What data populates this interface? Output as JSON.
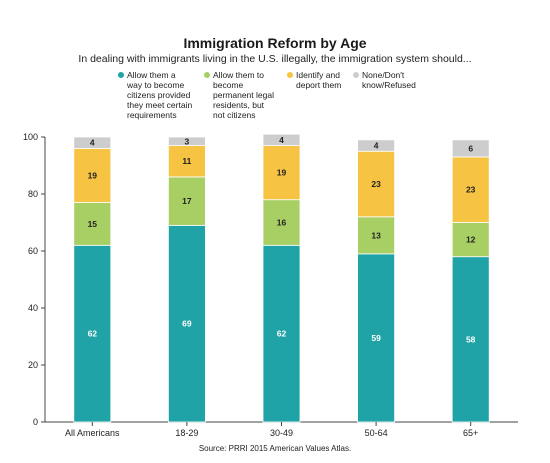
{
  "chart_data": {
    "type": "bar",
    "stacked": true,
    "title": "Immigration Reform by Age",
    "subtitle": "In dealing with immigrants living in the U.S. illegally, the immigration system should...",
    "categories": [
      "All Americans",
      "18-29",
      "30-49",
      "50-64",
      "65+"
    ],
    "series": [
      {
        "name": "Allow them a way to become citizens provided they meet certain requirements",
        "color": "#1fa3a6",
        "values": [
          62,
          69,
          62,
          59,
          58
        ]
      },
      {
        "name": "Allow them to become permanent legal residents, but not citizens",
        "color": "#a8cf63",
        "values": [
          15,
          17,
          16,
          13,
          12
        ]
      },
      {
        "name": "Identify and deport them",
        "color": "#f6c343",
        "values": [
          19,
          11,
          19,
          23,
          23
        ]
      },
      {
        "name": "None/Don't know/Refused",
        "color": "#cdcdcd",
        "values": [
          4,
          3,
          4,
          4,
          6
        ]
      }
    ],
    "ylim": [
      0,
      100
    ],
    "yticks": [
      "0",
      "20",
      "40",
      "60",
      "80",
      "100"
    ],
    "legend_position": "top",
    "grid": false,
    "source": "Source: PRRI 2015 American Values Atlas."
  },
  "legend_labels": [
    "Allow them a\nway to become\ncitizens provided\nthey meet certain\nrequirements",
    "Allow them to\nbecome\npermanent legal\nresidents, but\nnot citizens",
    "Identify and\ndeport them",
    "None/Don't\nknow/Refused"
  ]
}
